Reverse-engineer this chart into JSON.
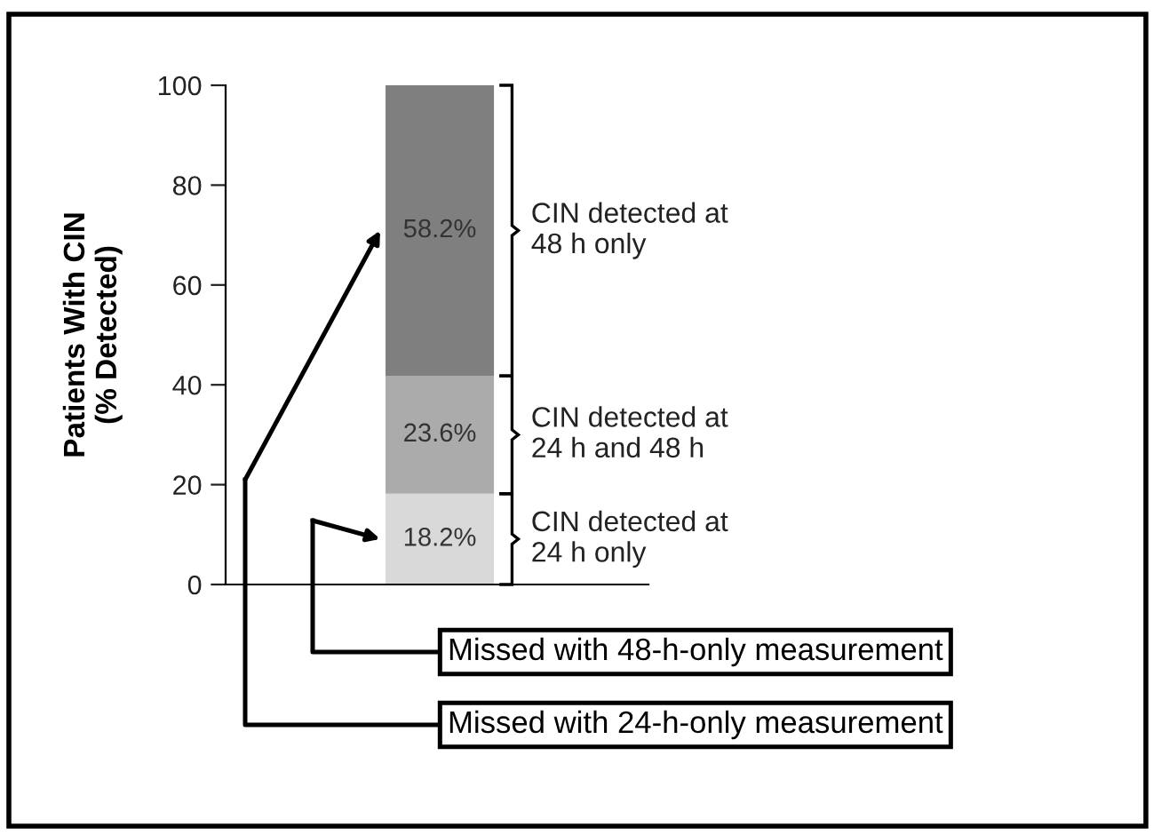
{
  "chart_data": {
    "type": "bar",
    "stacked": true,
    "ylabel": "Patients With CIN\n(% Detected)",
    "categories": [
      null
    ],
    "series": [
      {
        "name": "CIN detected at\n24 h only",
        "color": "#d9d9d9",
        "values": [
          18.2
        ],
        "value_labels": [
          "18.2%"
        ]
      },
      {
        "name": "CIN detected at\n24 h and 48 h",
        "color": "#ababab",
        "values": [
          23.6
        ],
        "value_labels": [
          "23.6%"
        ]
      },
      {
        "name": "CIN detected at\n48 h only",
        "color": "#7f7f7f",
        "values": [
          58.2
        ],
        "value_labels": [
          "58.2%"
        ]
      }
    ],
    "ylim": [
      0,
      100
    ],
    "yticks": [
      0,
      20,
      40,
      60,
      80,
      100
    ],
    "grid": false,
    "legend": false,
    "annotations": [
      "Missed with 48-h-only measurement",
      "Missed with 24-h-only measurement"
    ]
  }
}
